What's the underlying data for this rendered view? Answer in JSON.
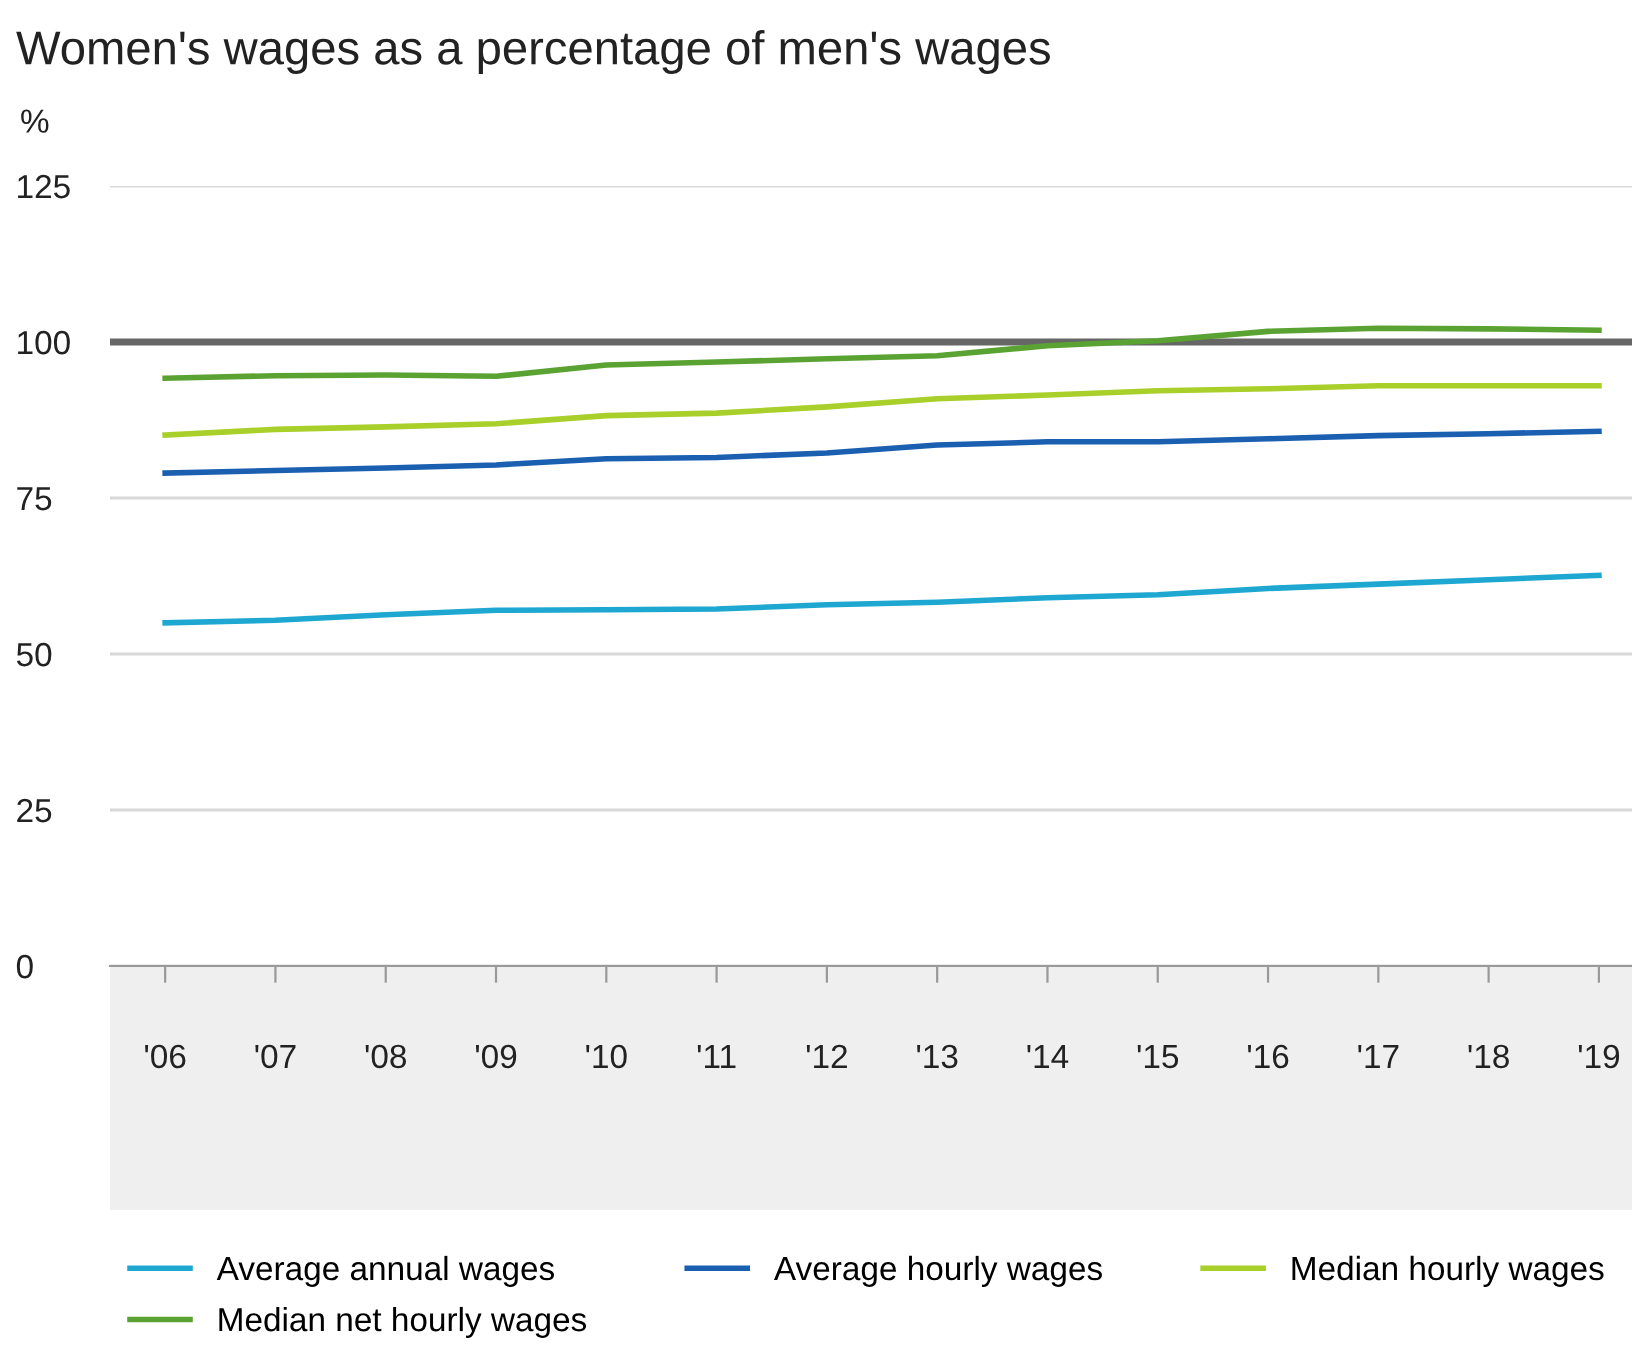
{
  "chart_data": {
    "type": "line",
    "title": "Women's wages as a percentage of men's wages",
    "ylabel": "%",
    "categories": [
      "'06",
      "'07",
      "'08",
      "'09",
      "'10",
      "'11",
      "'12",
      "'13",
      "'14",
      "'15",
      "'16",
      "'17",
      "'18",
      "'19"
    ],
    "series": [
      {
        "name": "Average annual wages",
        "color": "#1ea7d0",
        "values": [
          55,
          55.4,
          56.3,
          57,
          57.1,
          57.2,
          57.9,
          58.3,
          59,
          59.5,
          60.5,
          61.2,
          61.9,
          62.6
        ]
      },
      {
        "name": "Average hourly wages",
        "color": "#1a5fb0",
        "values": [
          79,
          79.4,
          79.8,
          80.3,
          81.3,
          81.5,
          82.2,
          83.5,
          84,
          84,
          84.5,
          85,
          85.3,
          85.7
        ]
      },
      {
        "name": "Median hourly wages",
        "color": "#a9cf2a",
        "values": [
          85.1,
          86,
          86.4,
          86.9,
          88.2,
          88.6,
          89.6,
          90.9,
          91.5,
          92.2,
          92.5,
          93,
          93,
          93
        ]
      },
      {
        "name": "Median net hourly wages",
        "color": "#5aa332",
        "values": [
          94.2,
          94.6,
          94.7,
          94.5,
          96.3,
          96.8,
          97.3,
          97.8,
          99.4,
          100.2,
          101.7,
          102.2,
          102.1,
          101.9
        ]
      }
    ],
    "ylim": [
      0,
      125
    ],
    "yticks": [
      0,
      25,
      50,
      75,
      100,
      125
    ],
    "ref_lines": [
      {
        "axis": "y",
        "value": 100,
        "color": "#666666"
      }
    ],
    "grid": "y",
    "legend": "bottom",
    "marker": "none",
    "line_style": "solid"
  }
}
